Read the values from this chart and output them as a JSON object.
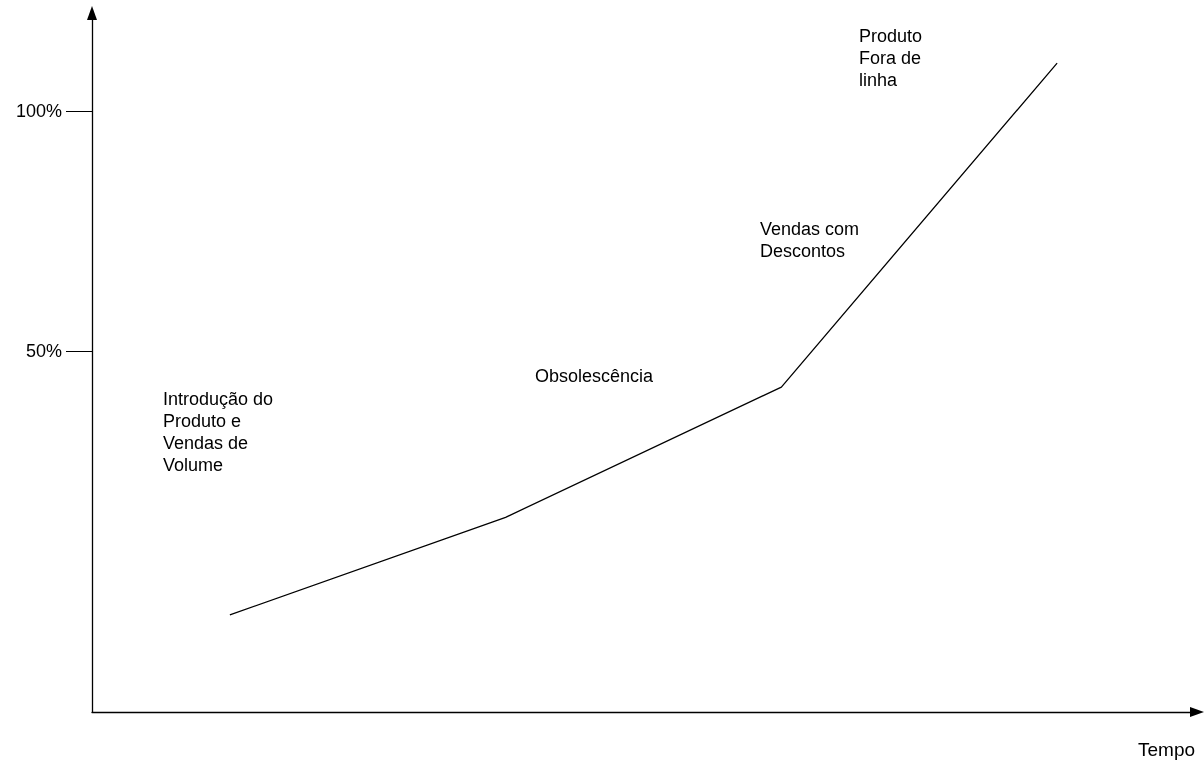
{
  "chart_data": {
    "type": "line",
    "xlabel": "Tempo",
    "categories": [
      null,
      null,
      null,
      null
    ],
    "series": [
      {
        "color": "#000000",
        "values": [
          -4.8,
          15.5,
          42.6,
          110
        ]
      }
    ],
    "ylim": [
      -25,
      120
    ],
    "yticks": [
      {
        "value": 50,
        "label": "50%"
      },
      {
        "value": 100,
        "label": "100%"
      }
    ],
    "grid": false,
    "marker": "none",
    "line_style": "solid",
    "tick_labels": "y",
    "annotations": [
      "Introdução do\nProduto e\nVendas de\nVolume",
      "Obsolescência",
      "Vendas com\nDescontos",
      "Produto\nFora de\nlinha"
    ]
  }
}
